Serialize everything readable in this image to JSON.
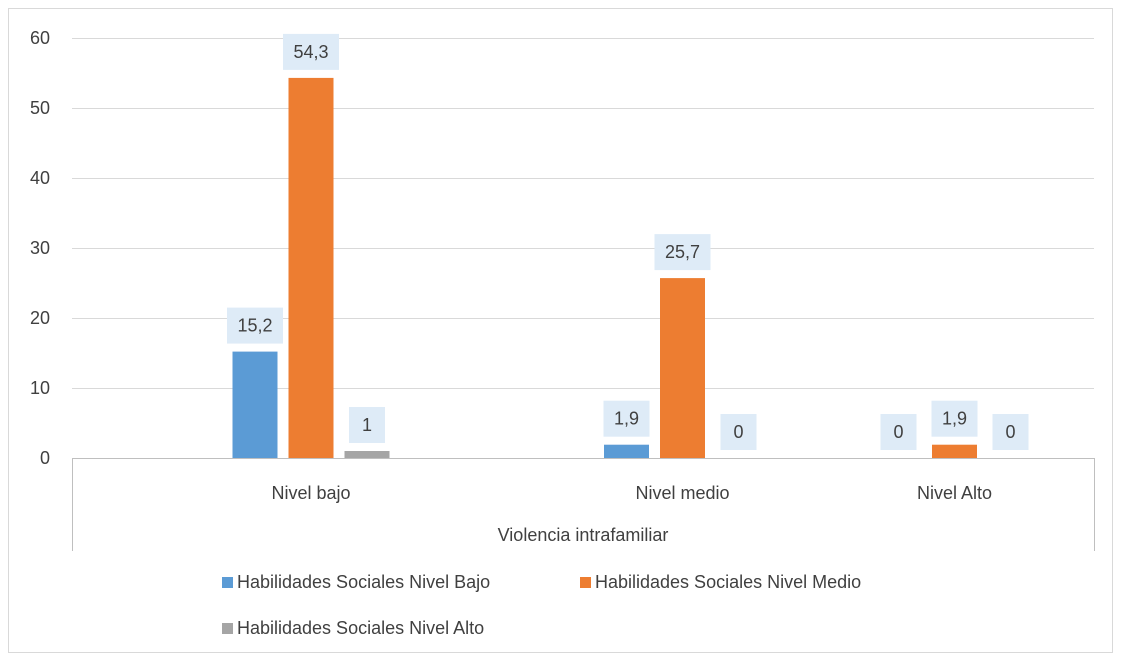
{
  "chart_data": {
    "type": "bar",
    "categories": [
      "Nivel bajo",
      "Nivel medio",
      "Nivel Alto"
    ],
    "series": [
      {
        "name": "Habilidades Sociales Nivel Bajo",
        "values": [
          15.2,
          1.9,
          0
        ],
        "labels": [
          "15,2",
          "1,9",
          "0"
        ],
        "color": "#5b9bd5"
      },
      {
        "name": "Habilidades Sociales  Nivel Medio",
        "values": [
          54.3,
          25.7,
          1.9
        ],
        "labels": [
          "54,3",
          "25,7",
          "1,9"
        ],
        "color": "#ed7d31"
      },
      {
        "name": "Habilidades Sociales  Nivel Alto",
        "values": [
          1,
          0,
          0
        ],
        "labels": [
          "1",
          "0",
          "0"
        ],
        "color": "#a5a5a5"
      }
    ],
    "y_ticks": [
      "0",
      "10",
      "20",
      "30",
      "40",
      "50",
      "60"
    ],
    "ylim": [
      0,
      60
    ],
    "xlabel": "Violencia intrafamiliar",
    "ylabel": "",
    "title": "",
    "grid": true,
    "legend_position": "bottom",
    "data_label_background": "#deebf7"
  }
}
